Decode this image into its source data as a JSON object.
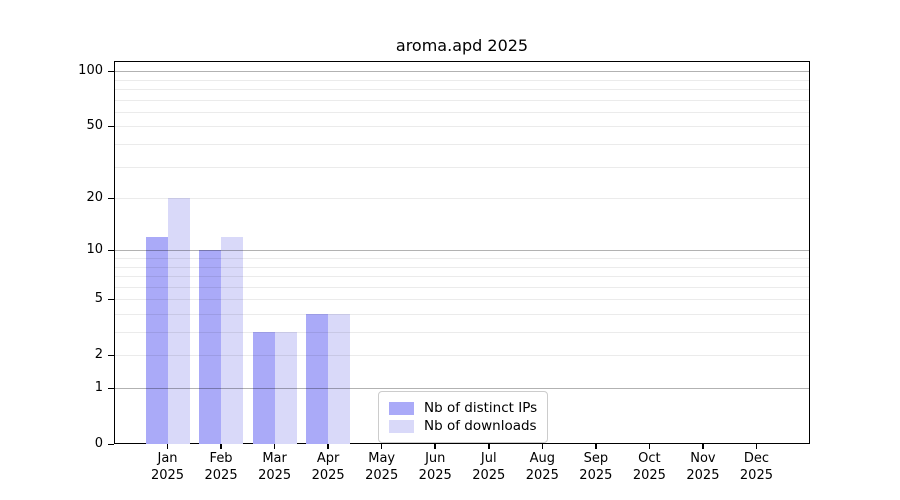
{
  "chart_data": {
    "type": "bar",
    "title": "aroma.apd 2025",
    "categories": [
      "Jan",
      "Feb",
      "Mar",
      "Apr",
      "May",
      "Jun",
      "Jul",
      "Aug",
      "Sep",
      "Oct",
      "Nov",
      "Dec"
    ],
    "category_year": "2025",
    "series": [
      {
        "name": "Nb of distinct IPs",
        "color": "#aaaaf8",
        "values": [
          12,
          10,
          3,
          4,
          0,
          0,
          0,
          0,
          0,
          0,
          0,
          0
        ]
      },
      {
        "name": "Nb of downloads",
        "color": "#d9d9f9",
        "values": [
          20,
          12,
          3,
          4,
          0,
          0,
          0,
          0,
          0,
          0,
          0,
          0
        ]
      }
    ],
    "y_axis": {
      "scale": "log10(1+x)",
      "tick_labels": [
        100,
        50,
        20,
        10,
        5,
        2,
        1,
        0
      ],
      "major_gridlines": [
        100,
        10,
        1
      ],
      "minor_gridlines": [
        90,
        80,
        70,
        60,
        50,
        40,
        30,
        20,
        9,
        8,
        7,
        6,
        5,
        4,
        3,
        2
      ],
      "ymax": 112
    },
    "legend": {
      "position": "lower center"
    },
    "grid": true
  }
}
